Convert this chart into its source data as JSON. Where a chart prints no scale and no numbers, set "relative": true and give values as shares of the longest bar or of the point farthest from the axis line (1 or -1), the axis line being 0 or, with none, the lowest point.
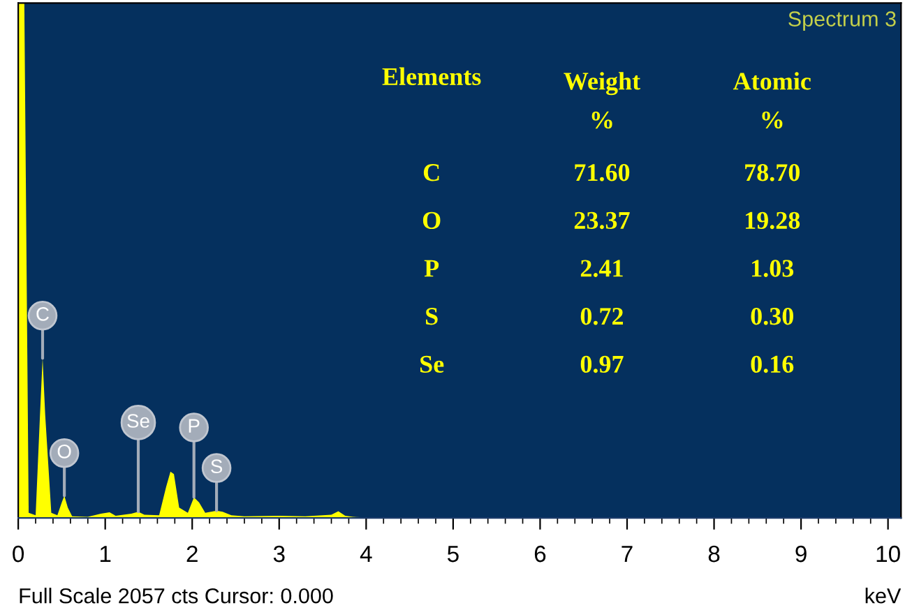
{
  "chart_data": [
    {
      "type": "area",
      "title": "Spectrum 3",
      "xlabel": "keV",
      "relative": true,
      "xlim": [
        0,
        10.15
      ],
      "xticks": [
        0,
        1,
        2,
        3,
        4,
        5,
        6,
        7,
        8,
        9,
        10
      ],
      "grid": false,
      "series": [
        {
          "color": "#ffff00",
          "x": [
            0,
            0.07,
            0.12,
            0.2,
            0.25,
            0.28,
            0.31,
            0.38,
            0.45,
            0.5,
            0.53,
            0.57,
            0.62,
            0.8,
            0.95,
            1.05,
            1.12,
            1.3,
            1.38,
            1.45,
            1.62,
            1.7,
            1.75,
            1.79,
            1.85,
            1.95,
            2.02,
            2.08,
            2.15,
            2.28,
            2.35,
            2.45,
            2.6,
            3.0,
            3.3,
            3.6,
            3.68,
            3.76,
            3.85,
            4.2,
            10
          ],
          "values": [
            1,
            1,
            0.01,
            0.005,
            0.2,
            0.31,
            0.2,
            0.01,
            0.005,
            0.03,
            0.043,
            0.02,
            0.003,
            0.002,
            0.008,
            0.011,
            0.004,
            0.008,
            0.012,
            0.006,
            0.005,
            0.06,
            0.09,
            0.085,
            0.02,
            0.01,
            0.04,
            0.03,
            0.01,
            0.014,
            0.012,
            0.005,
            0.003,
            0.004,
            0.003,
            0.006,
            0.013,
            0.004,
            0.002,
            0,
            0
          ]
        }
      ],
      "annotations": [
        {
          "text": "C",
          "x": 0.28,
          "y": 0.31
        },
        {
          "text": "O",
          "x": 0.53,
          "y": 0.043
        },
        {
          "text": "Se",
          "x": 1.38,
          "y": 0.012
        },
        {
          "text": "P",
          "x": 2.02,
          "y": 0.04
        },
        {
          "text": "S",
          "x": 2.28,
          "y": 0.014
        },
        "Full Scale 2057 cts Cursor: 0.000"
      ]
    },
    {
      "type": "other",
      "xlabel": "Elements",
      "categories": [
        "C",
        "O",
        "P",
        "S",
        "Se"
      ],
      "data_labels": true,
      "series": [
        {
          "name": "Weight\n%",
          "color": "#ffff00",
          "values": [
            71.6,
            23.37,
            2.41,
            0.72,
            0.97
          ],
          "value_labels": [
            "71.60",
            "23.37",
            "2.41",
            "0.72",
            "0.97"
          ]
        },
        {
          "name": "Atomic\n%",
          "color": "#ffff00",
          "values": [
            78.7,
            19.28,
            1.03,
            0.3,
            0.16
          ],
          "value_labels": [
            "78.70",
            "19.28",
            "1.03",
            "0.30",
            "0.16"
          ]
        }
      ]
    }
  ]
}
